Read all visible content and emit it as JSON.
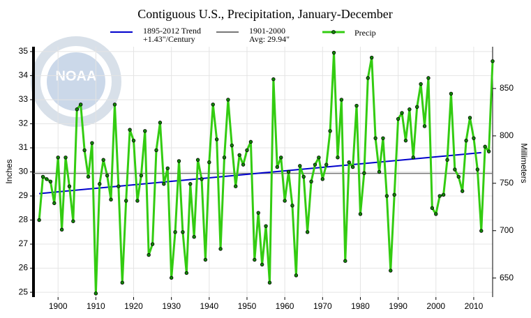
{
  "chart_data": {
    "type": "line",
    "title": "Contiguous U.S., Precipitation, January-December",
    "logo": "NOAA",
    "y_label": "Inches",
    "y2_label": "Millimeters",
    "x": [
      1895,
      1896,
      1897,
      1898,
      1899,
      1900,
      1901,
      1902,
      1903,
      1904,
      1905,
      1906,
      1907,
      1908,
      1909,
      1910,
      1911,
      1912,
      1913,
      1914,
      1915,
      1916,
      1917,
      1918,
      1919,
      1920,
      1921,
      1922,
      1923,
      1924,
      1925,
      1926,
      1927,
      1928,
      1929,
      1930,
      1931,
      1932,
      1933,
      1934,
      1935,
      1936,
      1937,
      1938,
      1939,
      1940,
      1941,
      1942,
      1943,
      1944,
      1945,
      1946,
      1947,
      1948,
      1949,
      1950,
      1951,
      1952,
      1953,
      1954,
      1955,
      1956,
      1957,
      1958,
      1959,
      1960,
      1961,
      1962,
      1963,
      1964,
      1965,
      1966,
      1967,
      1968,
      1969,
      1970,
      1971,
      1972,
      1973,
      1974,
      1975,
      1976,
      1977,
      1978,
      1979,
      1980,
      1981,
      1982,
      1983,
      1984,
      1985,
      1986,
      1987,
      1988,
      1989,
      1990,
      1991,
      1992,
      1993,
      1994,
      1995,
      1996,
      1997,
      1998,
      1999,
      2000,
      2001,
      2002,
      2003,
      2004,
      2005,
      2006,
      2007,
      2008,
      2009,
      2010,
      2011,
      2012,
      2013,
      2014,
      2015
    ],
    "series": [
      {
        "name": "Precip",
        "color": "#33cc11",
        "values": [
          28.0,
          29.8,
          29.7,
          29.6,
          28.7,
          30.6,
          27.6,
          30.6,
          29.4,
          27.95,
          32.6,
          32.8,
          30.9,
          29.8,
          31.2,
          24.95,
          29.5,
          30.5,
          29.85,
          28.85,
          32.8,
          29.4,
          25.4,
          28.8,
          31.75,
          31.3,
          28.8,
          29.85,
          31.7,
          26.55,
          27.0,
          30.9,
          32.05,
          29.5,
          30.15,
          25.6,
          27.5,
          30.45,
          27.5,
          25.8,
          29.5,
          27.3,
          30.5,
          29.7,
          26.35,
          30.4,
          32.8,
          31.35,
          26.8,
          30.6,
          33.0,
          31.1,
          29.4,
          30.7,
          30.3,
          30.9,
          31.25,
          26.35,
          28.3,
          26.15,
          27.75,
          25.4,
          33.85,
          30.2,
          30.6,
          28.8,
          30.0,
          28.6,
          25.7,
          30.25,
          29.8,
          27.5,
          29.6,
          30.3,
          30.6,
          29.7,
          30.3,
          31.7,
          34.95,
          30.6,
          33.0,
          26.3,
          30.4,
          30.2,
          32.75,
          28.25,
          29.95,
          33.9,
          34.75,
          31.4,
          30.0,
          31.4,
          29.0,
          25.9,
          29.05,
          32.2,
          32.45,
          31.3,
          32.6,
          30.6,
          32.7,
          33.65,
          31.9,
          33.9,
          28.5,
          28.25,
          29.0,
          29.05,
          30.5,
          33.25,
          30.1,
          29.8,
          29.2,
          31.3,
          32.25,
          31.4,
          30.1,
          27.55,
          31.05,
          30.85,
          34.6
        ]
      }
    ],
    "trend": {
      "name": "1895-2012 Trend",
      "note": "+1.43\"/Century",
      "color": "#0000cc",
      "x": [
        1895,
        2012
      ],
      "values": [
        29.1,
        30.8
      ]
    },
    "average": {
      "name": "1901-2000",
      "note": "Avg: 29.94\"",
      "color": "#777777",
      "value": 29.94
    },
    "xlim": [
      1893.5,
      2015
    ],
    "xticks": [
      1900,
      1910,
      1920,
      1930,
      1940,
      1950,
      1960,
      1970,
      1980,
      1990,
      2000,
      2010
    ],
    "ylim": [
      24.8,
      35.2
    ],
    "yticks": [
      25,
      26,
      27,
      28,
      29,
      30,
      31,
      32,
      33,
      34,
      35
    ],
    "y2lim": [
      629.92,
      894.08
    ],
    "y2ticks": [
      650,
      700,
      750,
      800,
      850
    ],
    "grid": true
  }
}
